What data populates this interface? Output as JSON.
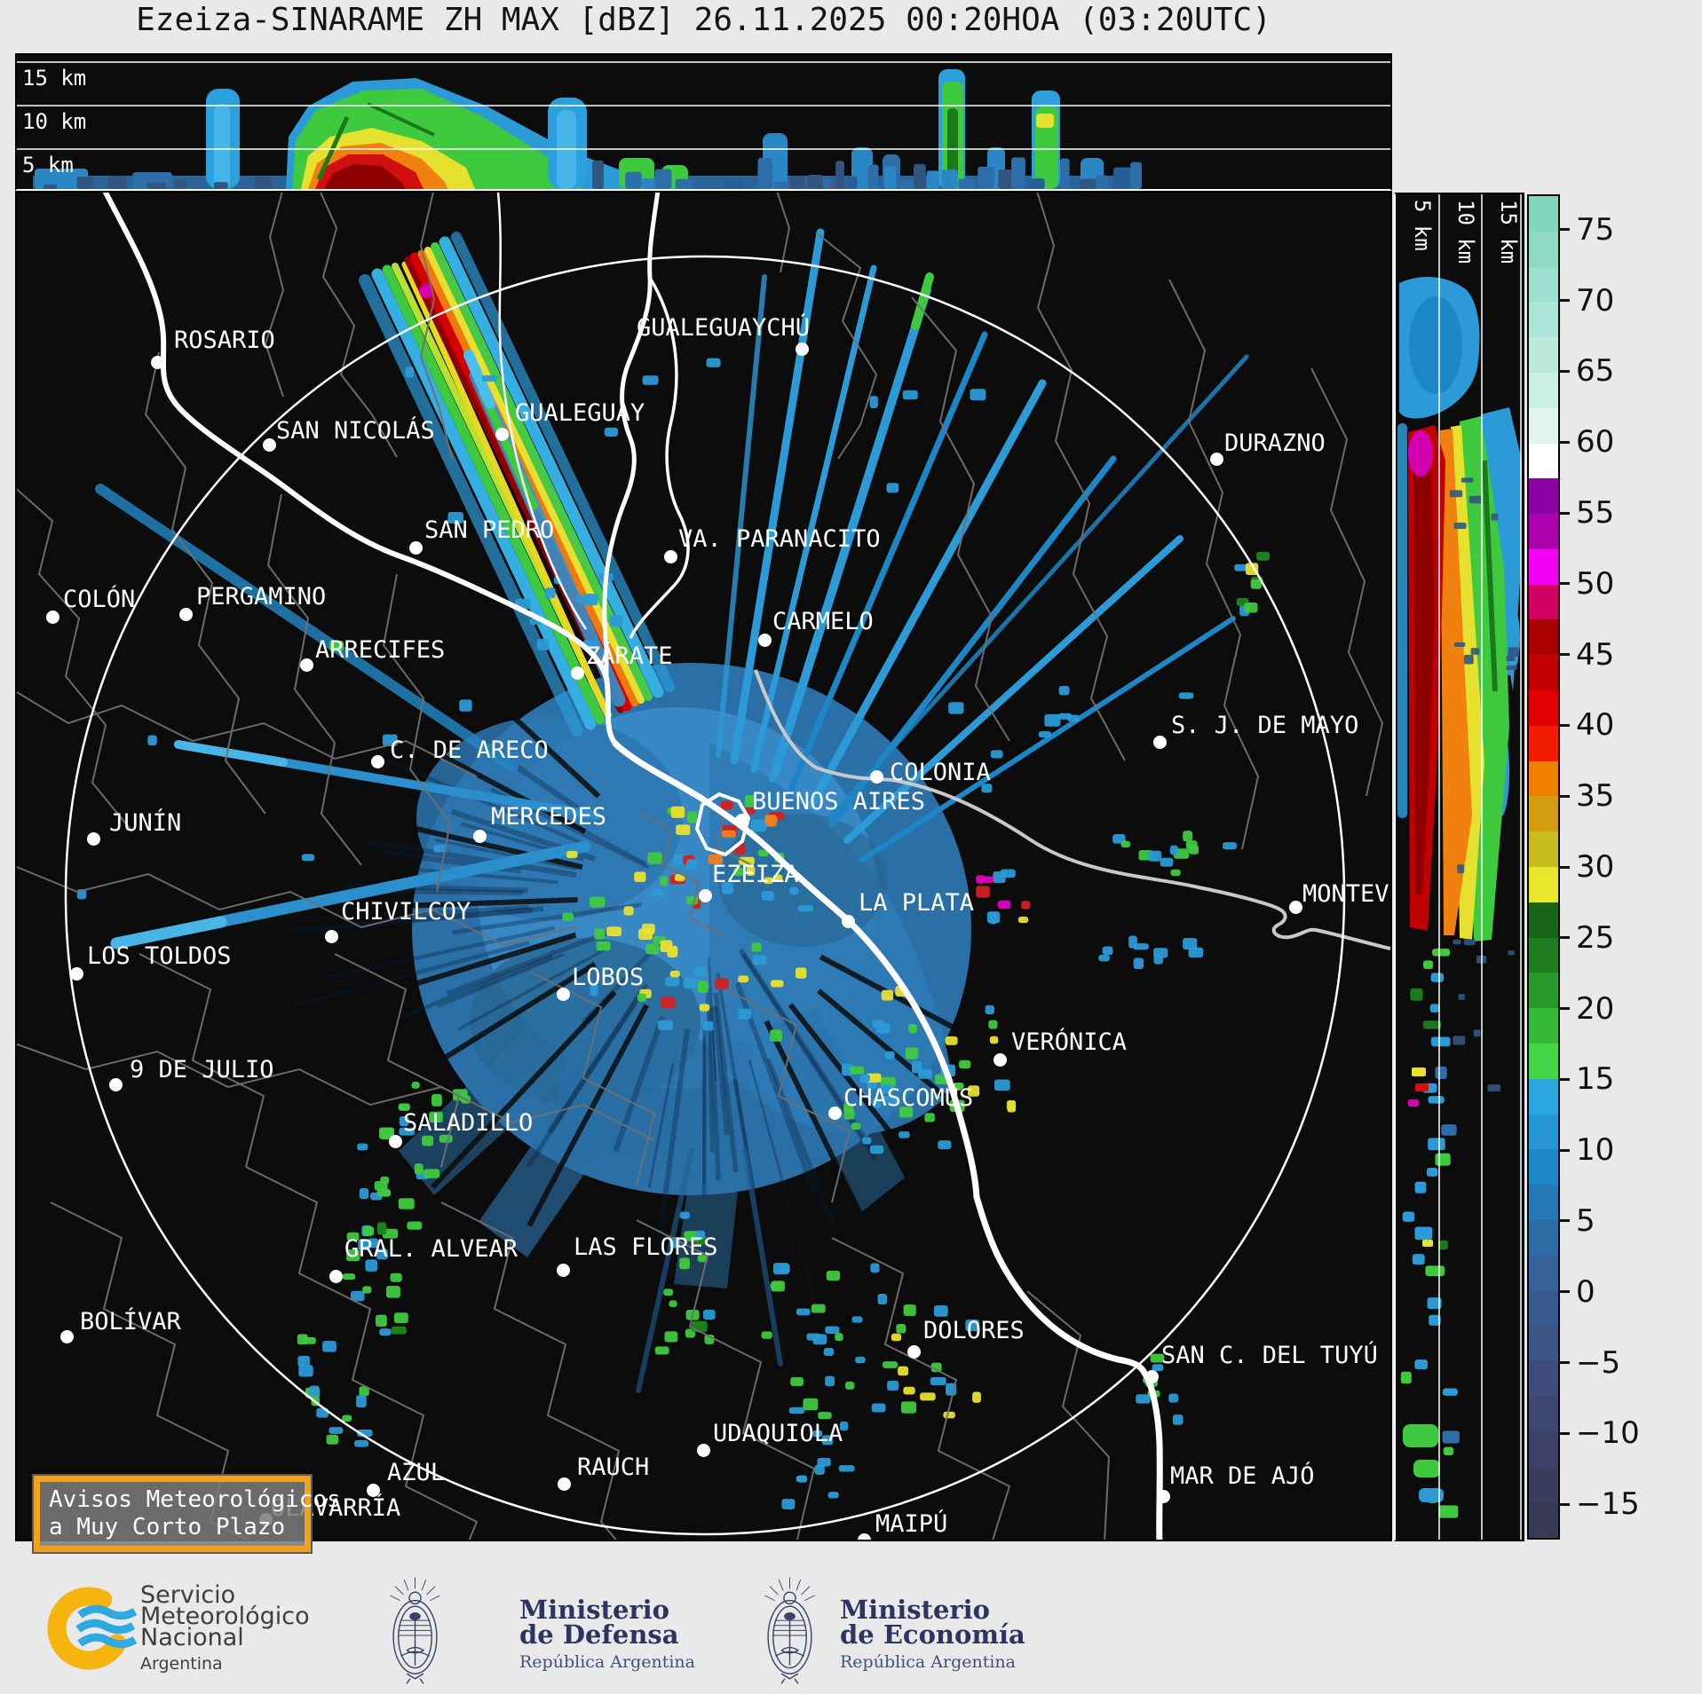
{
  "title": "Ezeiza-SINARAME ZH MAX [dBZ] 26.11.2025 00:20HOA (03:20UTC)",
  "product": {
    "radar_name": "Ezeiza-SINARAME",
    "field": "ZH MAX",
    "units": "dBZ",
    "date": "26.11.2025",
    "local_time": "00:20HOA",
    "utc_time": "03:20UTC"
  },
  "cross_sections": {
    "top_altitude_labels": [
      "15 km",
      "10 km",
      "5 km"
    ],
    "side_altitude_labels": [
      "5 km",
      "10 km",
      "15 km"
    ]
  },
  "colorbar": {
    "units": "dBZ",
    "vmax": 77.5,
    "vmin": -17.5,
    "tick_values": [
      75,
      70,
      65,
      60,
      55,
      50,
      45,
      40,
      35,
      30,
      25,
      20,
      15,
      10,
      5,
      0,
      -5,
      -10,
      -15
    ],
    "tick_labels": [
      "75",
      "70",
      "65",
      "60",
      "55",
      "50",
      "45",
      "40",
      "35",
      "30",
      "25",
      "20",
      "15",
      "10",
      "5",
      "0",
      "−5",
      "−10",
      "−15"
    ],
    "band_colors": [
      "#82d6bd",
      "#8fdac4",
      "#9ee1ce",
      "#ade6d6",
      "#bcebdd",
      "#cbefe5",
      "#dff5ee",
      "#ffffff",
      "#8a00a2",
      "#ad00ad",
      "#f400f4",
      "#cf0060",
      "#a80000",
      "#c30000",
      "#e00000",
      "#f21d00",
      "#ee8200",
      "#d49c10",
      "#c9bc1e",
      "#e8e72c",
      "#17641a",
      "#1e7d1f",
      "#27992a",
      "#36b838",
      "#44d646",
      "#2aa7de",
      "#2497d4",
      "#1e87c6",
      "#2679b6",
      "#2e6ca6",
      "#346299",
      "#395a8e",
      "#3c5384",
      "#3d4c79",
      "#3e4670",
      "#3d4168",
      "#3a3d5e",
      "#383955"
    ]
  },
  "map": {
    "cities": [
      {
        "name": "ROSARIO",
        "label": [
          194,
          366
        ],
        "dot": [
          175,
          406
        ]
      },
      {
        "name": "GUALEGUAYCHÚ",
        "label": [
          715,
          352
        ],
        "dot": [
          901,
          391
        ]
      },
      {
        "name": "GUALEGUAY",
        "label": [
          578,
          448
        ],
        "dot": [
          563,
          487
        ]
      },
      {
        "name": "SAN NICOLÁS",
        "label": [
          309,
          468
        ],
        "dot": [
          301,
          499
        ]
      },
      {
        "name": "DURAZNO",
        "label": [
          1377,
          482
        ],
        "dot": [
          1368,
          515
        ]
      },
      {
        "name": "SAN PEDRO",
        "label": [
          476,
          580
        ],
        "dot": [
          466,
          615
        ]
      },
      {
        "name": "VA. PARANACITO",
        "label": [
          762,
          590
        ],
        "dot": [
          753,
          625
        ]
      },
      {
        "name": "COLÓN",
        "label": [
          69,
          658
        ],
        "dot": [
          57,
          693
        ]
      },
      {
        "name": "PERGAMINO",
        "label": [
          219,
          655
        ],
        "dot": [
          207,
          690
        ]
      },
      {
        "name": "ARRECIFES",
        "label": [
          353,
          715
        ],
        "dot": [
          343,
          747
        ]
      },
      {
        "name": "CARMELO",
        "label": [
          868,
          683
        ],
        "dot": [
          859,
          719
        ]
      },
      {
        "name": "ZÁRATE",
        "label": [
          658,
          722
        ],
        "dot": [
          648,
          756
        ]
      },
      {
        "name": "C. DE ARECO",
        "label": [
          437,
          828
        ],
        "dot": [
          423,
          856
        ]
      },
      {
        "name": "S. J. DE MAYO",
        "label": [
          1317,
          800
        ],
        "dot": [
          1304,
          834
        ]
      },
      {
        "name": "COLONIA",
        "label": [
          1000,
          853
        ],
        "dot": [
          985,
          873
        ]
      },
      {
        "name": "JUNÍN",
        "label": [
          121,
          910
        ],
        "dot": [
          103,
          943
        ]
      },
      {
        "name": "MERCEDES",
        "label": [
          551,
          903
        ],
        "dot": [
          538,
          940
        ]
      },
      {
        "name": "BUENOS AIRES",
        "label": [
          845,
          886
        ],
        "dot": [
          833,
          922
        ]
      },
      {
        "name": "EZEIZA",
        "label": [
          800,
          968
        ],
        "dot": [
          792,
          1007
        ]
      },
      {
        "name": "CHIVILCOY",
        "label": [
          382,
          1010
        ],
        "dot": [
          371,
          1053
        ]
      },
      {
        "name": "LA PLATA",
        "label": [
          965,
          1000
        ],
        "dot": [
          953,
          1036
        ]
      },
      {
        "name": "MONTEVIDEO",
        "label": [
          1465,
          990
        ],
        "dot": [
          1457,
          1020
        ]
      },
      {
        "name": "LOS TOLDOS",
        "label": [
          96,
          1060
        ],
        "dot": [
          84,
          1095
        ]
      },
      {
        "name": "LOBOS",
        "label": [
          642,
          1084
        ],
        "dot": [
          632,
          1118
        ]
      },
      {
        "name": "9 DE JULIO",
        "label": [
          144,
          1188
        ],
        "dot": [
          128,
          1220
        ]
      },
      {
        "name": "VERÓNICA",
        "label": [
          1137,
          1157
        ],
        "dot": [
          1124,
          1192
        ]
      },
      {
        "name": "CHASCOMÚS",
        "label": [
          948,
          1220
        ],
        "dot": [
          938,
          1252
        ]
      },
      {
        "name": "SALADILLO",
        "label": [
          452,
          1248
        ],
        "dot": [
          443,
          1284
        ]
      },
      {
        "name": "GRAL. ALVEAR",
        "label": [
          386,
          1390
        ],
        "dot": [
          376,
          1436
        ]
      },
      {
        "name": "LAS FLORES",
        "label": [
          644,
          1388
        ],
        "dot": [
          632,
          1429
        ]
      },
      {
        "name": "BOLÍVAR",
        "label": [
          88,
          1472
        ],
        "dot": [
          73,
          1504
        ]
      },
      {
        "name": "DOLORES",
        "label": [
          1038,
          1482
        ],
        "dot": [
          1027,
          1521
        ]
      },
      {
        "name": "SAN C. DEL TUYÚ",
        "label": [
          1306,
          1510
        ],
        "dot": [
          1295,
          1549
        ]
      },
      {
        "name": "UDAQUIOLA",
        "label": [
          801,
          1598
        ],
        "dot": [
          790,
          1632
        ]
      },
      {
        "name": "AZUL",
        "label": [
          434,
          1642
        ],
        "dot": [
          418,
          1677
        ]
      },
      {
        "name": "RAUCH",
        "label": [
          648,
          1636
        ],
        "dot": [
          633,
          1670
        ]
      },
      {
        "name": "MAR DE AJÓ",
        "label": [
          1316,
          1646
        ],
        "dot": [
          1308,
          1684
        ]
      },
      {
        "name": "MAIPÚ",
        "label": [
          984,
          1700
        ],
        "dot": [
          971,
          1733
        ]
      },
      {
        "name": "OLAVARRÍA",
        "label": [
          303,
          1682
        ],
        "dot": [
          297,
          1710
        ]
      }
    ]
  },
  "alert_box": {
    "line1": "Avisos Meteorológicos",
    "line2": "a Muy Corto Plazo"
  },
  "footer": {
    "smn_lines": [
      "Servicio",
      "Meteorológico",
      "Nacional"
    ],
    "smn_country": "Argentina",
    "ministries": [
      {
        "l1": "Ministerio",
        "l2": "de Defensa",
        "l3": "República Argentina"
      },
      {
        "l1": "Ministerio",
        "l2": "de Economía",
        "l3": "República Argentina"
      }
    ]
  },
  "colors": {
    "background": "#e9e9e9",
    "panel_background": "#0c0c0c",
    "alert_border": "#f2a11c",
    "city_label": "#ffffff",
    "admin_boundary": "#707070",
    "river": "#ffffff",
    "uruguay_coast": "#c9c9c9",
    "range_ring": "#ffffff",
    "smn_yellow": "#f6b40e",
    "smn_blue": "#2fa9e0",
    "ministry_navy": "#2b3560"
  }
}
